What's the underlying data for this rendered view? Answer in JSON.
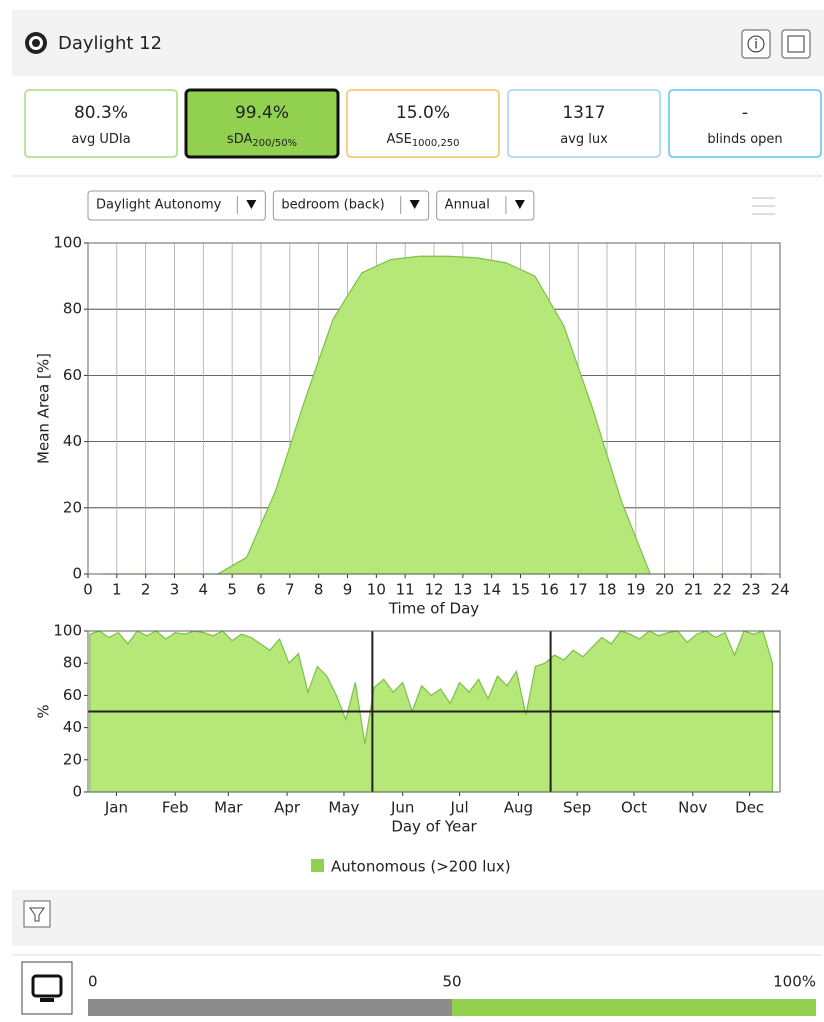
{
  "header": {
    "title": "Daylight 12"
  },
  "metrics": [
    {
      "value": "80.3%",
      "label": "avg UDIa"
    },
    {
      "value": "99.4%",
      "label": "sDA",
      "sub": "200/50%"
    },
    {
      "value": "15.0%",
      "label": "ASE",
      "sub": "1000,250"
    },
    {
      "value": "1317",
      "label": "avg lux"
    },
    {
      "value": "-",
      "label": "blinds open"
    }
  ],
  "dropdowns": [
    "Daylight Autonomy",
    "bedroom (back)",
    "Annual"
  ],
  "chart_data": [
    {
      "type": "area",
      "xlabel": "Time of Day",
      "ylabel": "Mean Area [%]",
      "color": "#b5e878",
      "grid": true,
      "x": [
        0.5,
        1.5,
        2.5,
        3.5,
        4.5,
        5.5,
        6.5,
        7.5,
        8.5,
        9.5,
        10.5,
        11.5,
        12.5,
        13.5,
        14.5,
        15.5,
        16.5,
        17.5,
        18.5,
        19.5,
        20.5,
        21.5,
        22.5,
        23.5
      ],
      "values": [
        0,
        0,
        0,
        0,
        0,
        5,
        25,
        52,
        77,
        91,
        95,
        96,
        96,
        95.5,
        94,
        90,
        75,
        50,
        22,
        0,
        0,
        0,
        0,
        0
      ],
      "xlim": [
        0,
        24
      ],
      "xticks": [
        0,
        1,
        2,
        3,
        4,
        5,
        6,
        7,
        8,
        9,
        10,
        11,
        12,
        13,
        14,
        15,
        16,
        17,
        18,
        19,
        20,
        21,
        22,
        23,
        24
      ],
      "ylim": [
        0,
        100
      ],
      "yticks": [
        0,
        20,
        40,
        60,
        80,
        100
      ]
    },
    {
      "type": "area",
      "xlabel": "Day of Year",
      "ylabel": "%",
      "color": "#b5e878",
      "grid": false,
      "x": [
        1,
        6,
        11,
        16,
        21,
        26,
        31,
        36,
        41,
        46,
        51,
        56,
        61,
        66,
        71,
        76,
        81,
        86,
        91,
        96,
        101,
        106,
        111,
        116,
        121,
        126,
        131,
        136,
        141,
        146,
        151,
        156,
        161,
        166,
        171,
        176,
        181,
        186,
        191,
        196,
        201,
        206,
        211,
        216,
        221,
        226,
        231,
        236,
        241,
        246,
        251,
        256,
        261,
        266,
        271,
        276,
        281,
        286,
        291,
        296,
        301,
        306,
        311,
        316,
        321,
        326,
        331,
        336,
        341,
        346,
        351,
        356,
        361
      ],
      "values": [
        98,
        100,
        96,
        99,
        92,
        100,
        97,
        100,
        95,
        99,
        98,
        100,
        99,
        97,
        100,
        94,
        98,
        96,
        92,
        88,
        95,
        80,
        86,
        62,
        78,
        72,
        60,
        45,
        68,
        30,
        65,
        70,
        62,
        68,
        50,
        66,
        60,
        64,
        55,
        68,
        62,
        70,
        58,
        72,
        66,
        75,
        48,
        78,
        80,
        85,
        82,
        88,
        84,
        90,
        96,
        92,
        100,
        98,
        95,
        100,
        97,
        99,
        100,
        93,
        98,
        100,
        96,
        99,
        85,
        100,
        98,
        100,
        80
      ],
      "xlim": [
        0,
        365
      ],
      "xticks": [
        {
          "value": 15,
          "label": "Jan"
        },
        {
          "value": 46,
          "label": "Feb"
        },
        {
          "value": 74,
          "label": "Mar"
        },
        {
          "value": 105,
          "label": "Apr"
        },
        {
          "value": 135,
          "label": "May"
        },
        {
          "value": 166,
          "label": "Jun"
        },
        {
          "value": 196,
          "label": "Jul"
        },
        {
          "value": 227,
          "label": "Aug"
        },
        {
          "value": 258,
          "label": "Sep"
        },
        {
          "value": 288,
          "label": "Oct"
        },
        {
          "value": 319,
          "label": "Nov"
        },
        {
          "value": 349,
          "label": "Dec"
        }
      ],
      "ylim": [
        0,
        100
      ],
      "yticks": [
        0,
        20,
        40,
        60,
        80,
        100
      ],
      "hlines": [
        50
      ],
      "vlines": [
        150,
        244
      ]
    }
  ],
  "legend": "Autonomous (>200 lux)",
  "slider": {
    "labels": [
      "0",
      "50",
      "100%"
    ]
  }
}
